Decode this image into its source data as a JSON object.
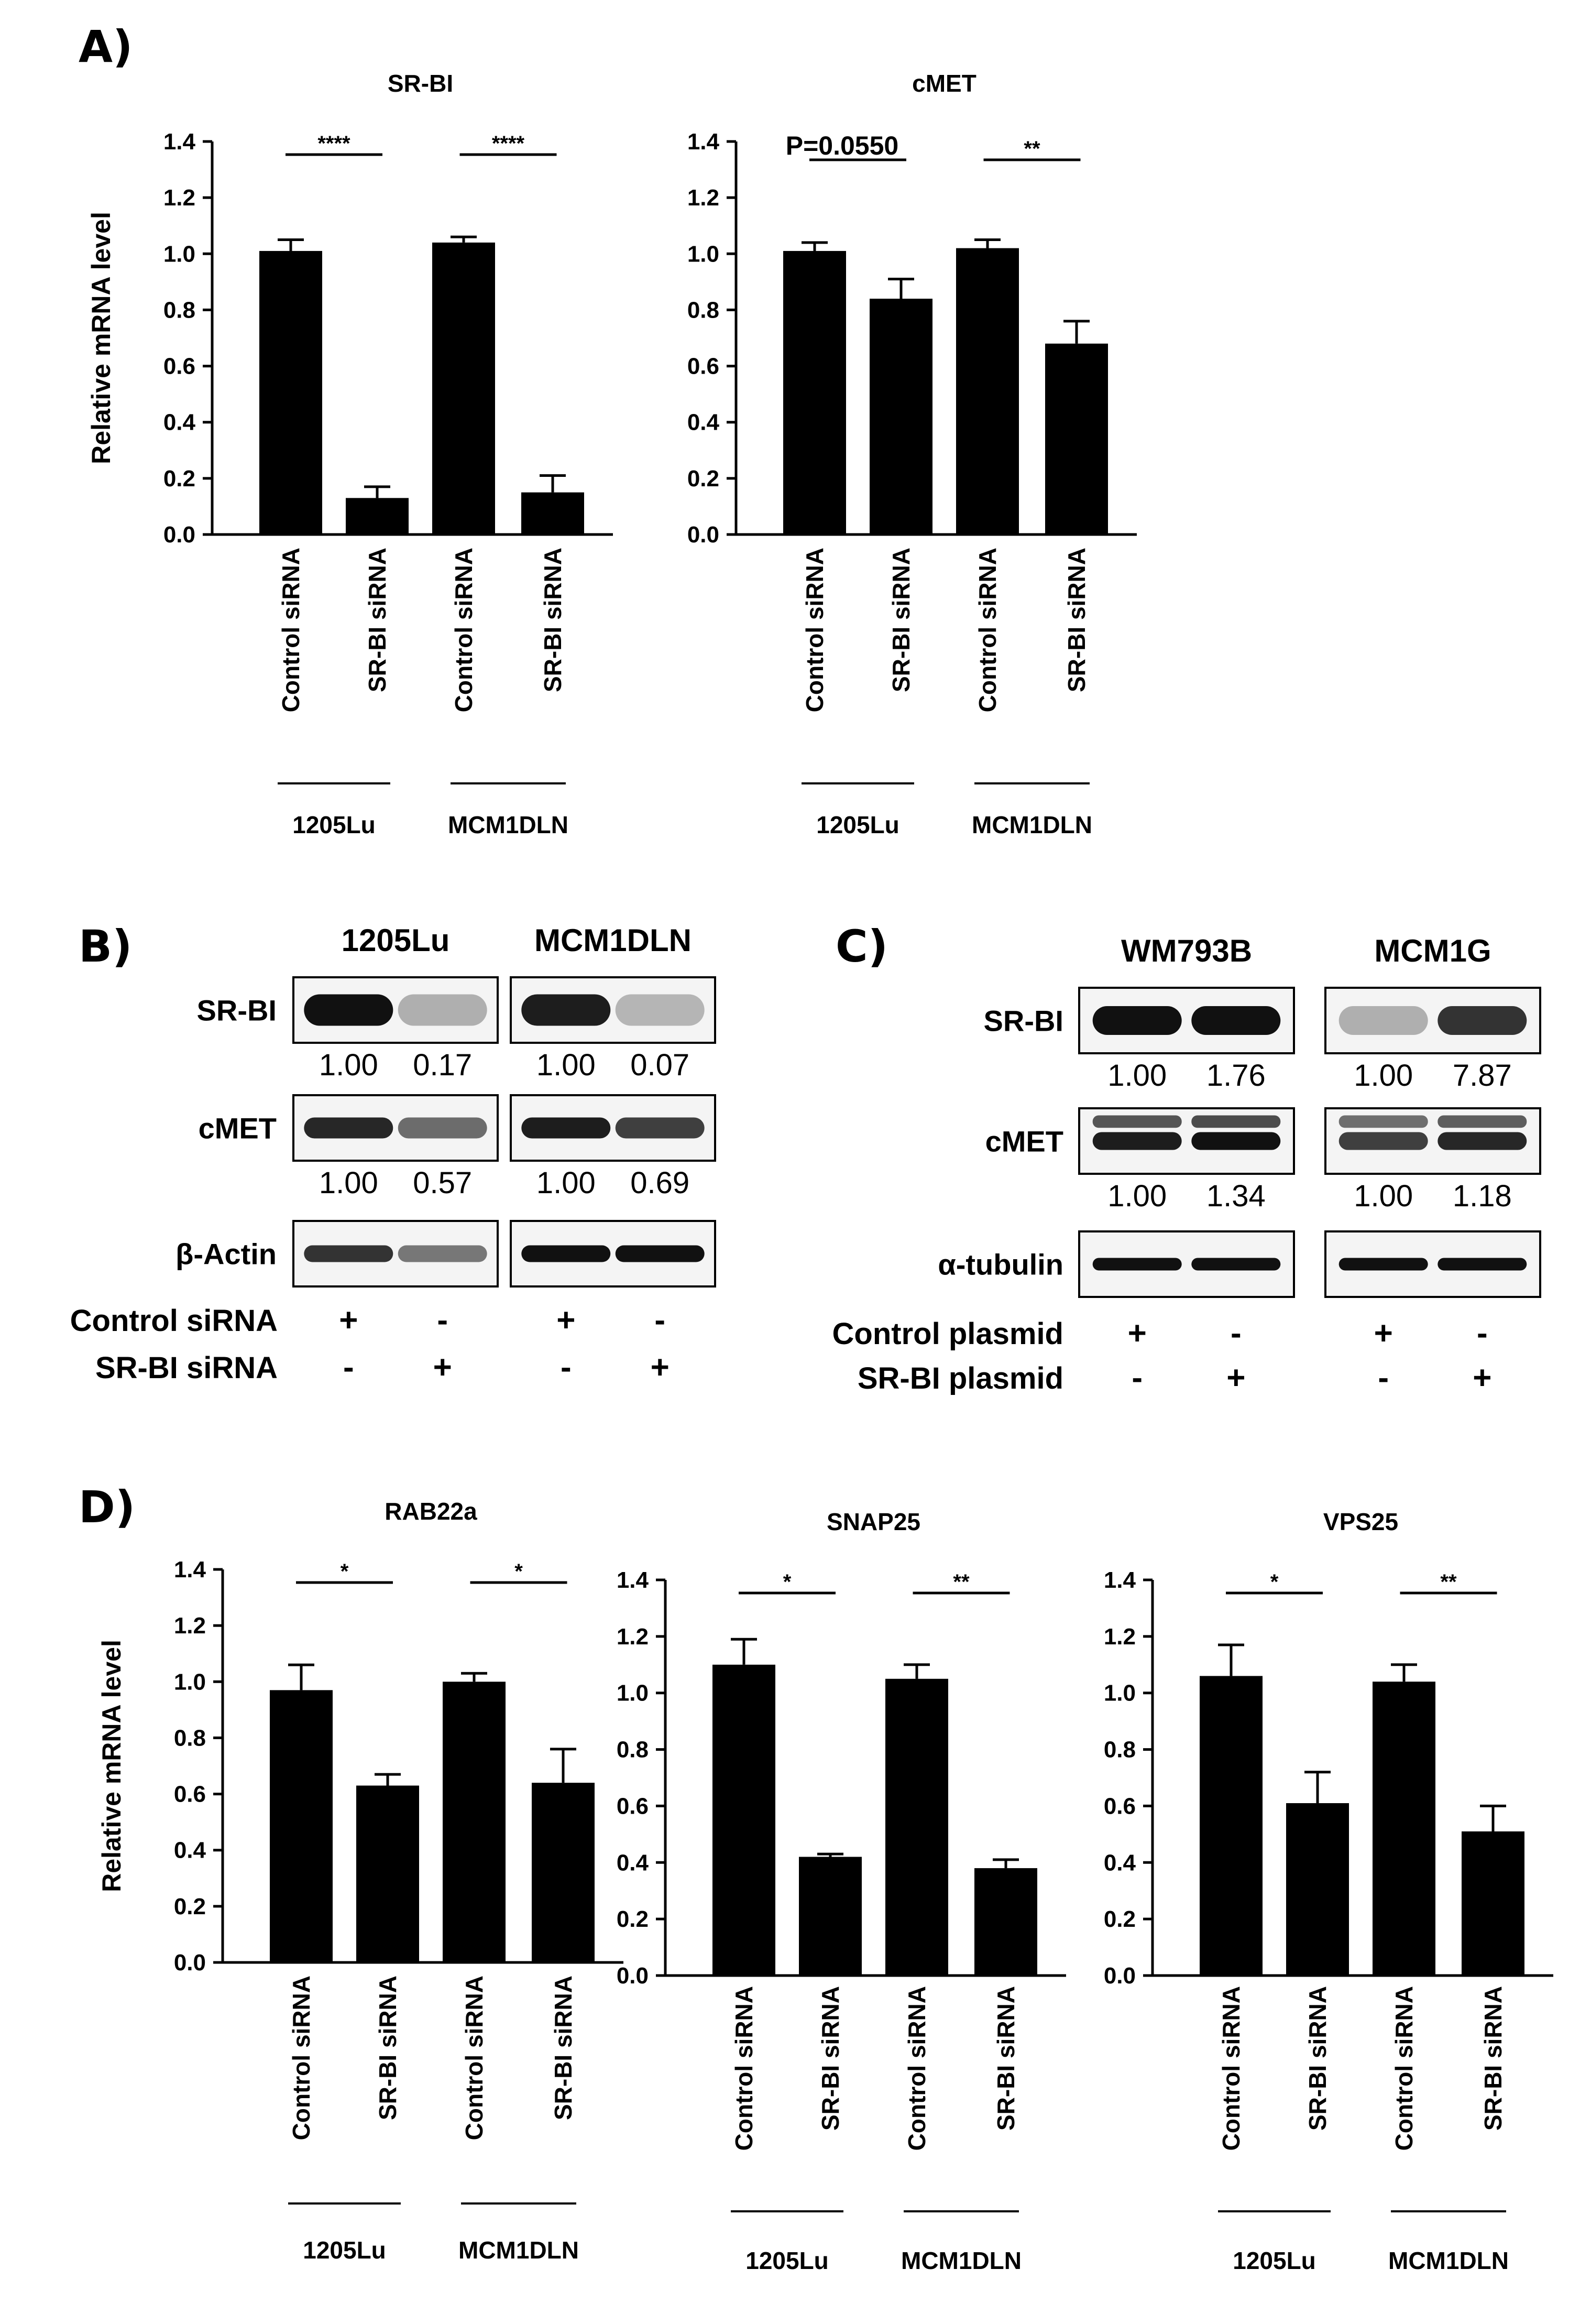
{
  "panel_labels": {
    "a": "A)",
    "b": "B)",
    "c": "C)",
    "d": "D)"
  },
  "ylabel": "Relative mRNA level",
  "categories": [
    "Control siRNA",
    "SR-BI siRNA",
    "Control siRNA",
    "SR-BI siRNA"
  ],
  "groups": [
    "1205Lu",
    "MCM1DLN"
  ],
  "yticks": [
    "0.0",
    "0.2",
    "0.4",
    "0.6",
    "0.8",
    "1.0",
    "1.2",
    "1.4"
  ],
  "chart_data": [
    {
      "type": "bar",
      "title": "SR-BI",
      "ylabel": "Relative mRNA level",
      "ylim": [
        0,
        1.4
      ],
      "categories": [
        "Control siRNA",
        "SR-BI siRNA",
        "Control siRNA",
        "SR-BI siRNA"
      ],
      "groups": [
        "1205Lu",
        "MCM1DLN"
      ],
      "values": [
        1.01,
        0.13,
        1.04,
        0.15
      ],
      "errors": [
        0.04,
        0.04,
        0.02,
        0.06
      ],
      "significance": [
        "****",
        "****"
      ]
    },
    {
      "type": "bar",
      "title": "cMET",
      "ylabel": "",
      "ylim": [
        0,
        1.4
      ],
      "categories": [
        "Control siRNA",
        "SR-BI siRNA",
        "Control siRNA",
        "SR-BI siRNA"
      ],
      "groups": [
        "1205Lu",
        "MCM1DLN"
      ],
      "values": [
        1.01,
        0.84,
        1.02,
        0.68
      ],
      "errors": [
        0.03,
        0.07,
        0.03,
        0.08
      ],
      "significance": [
        "P=0.0550",
        "**"
      ]
    },
    {
      "type": "bar",
      "title": "RAB22a",
      "ylabel": "Relative mRNA level",
      "ylim": [
        0,
        1.4
      ],
      "categories": [
        "Control siRNA",
        "SR-BI siRNA",
        "Control siRNA",
        "SR-BI siRNA"
      ],
      "groups": [
        "1205Lu",
        "MCM1DLN"
      ],
      "values": [
        0.97,
        0.63,
        1.0,
        0.64
      ],
      "errors": [
        0.09,
        0.04,
        0.03,
        0.12
      ],
      "significance": [
        "*",
        "*"
      ]
    },
    {
      "type": "bar",
      "title": "SNAP25",
      "ylabel": "",
      "ylim": [
        0,
        1.4
      ],
      "categories": [
        "Control siRNA",
        "SR-BI siRNA",
        "Control siRNA",
        "SR-BI siRNA"
      ],
      "groups": [
        "1205Lu",
        "MCM1DLN"
      ],
      "values": [
        1.1,
        0.42,
        1.05,
        0.38
      ],
      "errors": [
        0.09,
        0.01,
        0.05,
        0.03
      ],
      "significance": [
        "*",
        "**"
      ]
    },
    {
      "type": "bar",
      "title": "VPS25",
      "ylabel": "",
      "ylim": [
        0,
        1.4
      ],
      "categories": [
        "Control siRNA",
        "SR-BI siRNA",
        "Control siRNA",
        "SR-BI siRNA"
      ],
      "groups": [
        "1205Lu",
        "MCM1DLN"
      ],
      "values": [
        1.06,
        0.61,
        1.04,
        0.51
      ],
      "errors": [
        0.11,
        0.11,
        0.06,
        0.09
      ],
      "significance": [
        "*",
        "**"
      ]
    }
  ],
  "blot_b": {
    "cell_lines": [
      "1205Lu",
      "MCM1DLN"
    ],
    "rows": [
      {
        "label": "SR-BI",
        "quant": [
          [
            "1.00",
            "0.17"
          ],
          [
            "1.00",
            "0.07"
          ]
        ]
      },
      {
        "label": "cMET",
        "quant": [
          [
            "1.00",
            "0.57"
          ],
          [
            "1.00",
            "0.69"
          ]
        ]
      },
      {
        "label": "β-Actin",
        "quant": null
      }
    ],
    "treatments": [
      {
        "label": "Control siRNA",
        "marks": [
          "+",
          "-",
          "+",
          "-"
        ]
      },
      {
        "label": "SR-BI siRNA",
        "marks": [
          "-",
          "+",
          "-",
          "+"
        ]
      }
    ]
  },
  "blot_c": {
    "cell_lines": [
      "WM793B",
      "MCM1G"
    ],
    "rows": [
      {
        "label": "SR-BI",
        "quant": [
          [
            "1.00",
            "1.76"
          ],
          [
            "1.00",
            "7.87"
          ]
        ]
      },
      {
        "label": "cMET",
        "quant": [
          [
            "1.00",
            "1.34"
          ],
          [
            "1.00",
            "1.18"
          ]
        ]
      },
      {
        "label": "α-tubulin",
        "quant": null
      }
    ],
    "treatments": [
      {
        "label": "Control plasmid",
        "marks": [
          "+",
          "-",
          "+",
          "-"
        ]
      },
      {
        "label": "SR-BI plasmid",
        "marks": [
          "-",
          "+",
          "-",
          "+"
        ]
      }
    ]
  }
}
